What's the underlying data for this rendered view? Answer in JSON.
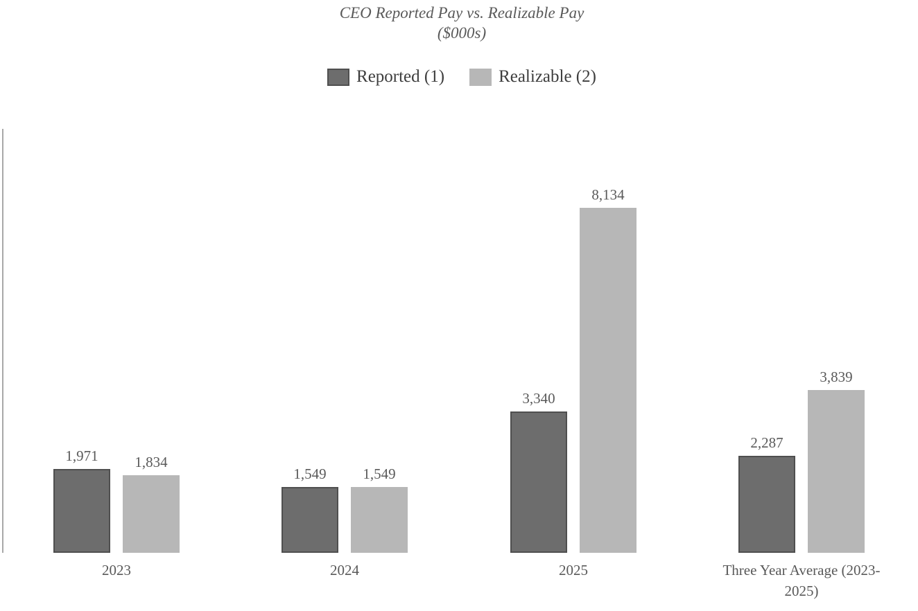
{
  "chart_data": {
    "type": "bar",
    "title": "CEO Reported Pay vs. Realizable Pay",
    "subtitle": "($000s)",
    "categories": [
      "2023",
      "2024",
      "2025",
      "Three Year Average  (2023-2025)"
    ],
    "series": [
      {
        "name": "Reported (1)",
        "values": [
          1971,
          1549,
          3340,
          2287
        ],
        "labels": [
          "1,971",
          "1,549",
          "3,340",
          "2,287"
        ],
        "color": "#6d6d6d",
        "border_color": "#4f4f4f"
      },
      {
        "name": "Realizable (2)",
        "values": [
          1834,
          1549,
          8134,
          3839
        ],
        "labels": [
          "1,834",
          "1,549",
          "8,134",
          "3,839"
        ],
        "color": "#b7b7b7"
      }
    ],
    "ylim": [
      0,
      10000
    ],
    "grid": false,
    "y_axis_tick_labels": false,
    "legend_position": "top",
    "data_labels": true,
    "colors": {
      "title_text": "#595959",
      "label_text": "#595959",
      "legend_text": "#3d3d3d",
      "axis_line": "#a8a8a8",
      "background": "#ffffff"
    }
  }
}
